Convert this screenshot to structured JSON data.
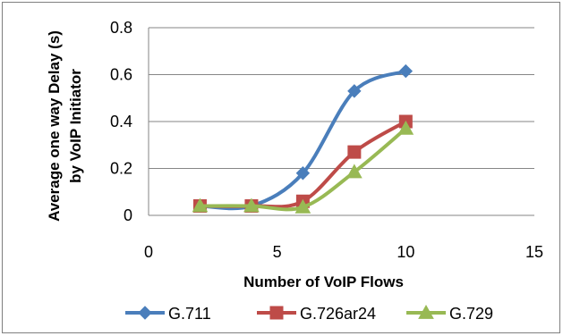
{
  "chart_data": {
    "type": "line",
    "xlabel": "Number of VoIP Flows",
    "ylabel_lines": [
      "Average one way Delay (s)",
      "by VoIP Initiator"
    ],
    "xlim": [
      0,
      15
    ],
    "ylim": [
      0,
      0.8
    ],
    "x_ticks": [
      0,
      5,
      10,
      15
    ],
    "y_ticks": [
      0,
      0.2,
      0.4,
      0.6,
      0.8
    ],
    "x_tick_labels": [
      "0",
      "5",
      "10",
      "15"
    ],
    "y_tick_labels": [
      "0",
      "0.2",
      "0.4",
      "0.6",
      "0.8"
    ],
    "grid": "horizontal",
    "legend_position": "bottom",
    "smooth": true,
    "series": [
      {
        "name": "G.711",
        "color": "#4a7ebb",
        "marker": "diamond",
        "x": [
          2,
          4,
          6,
          8,
          10
        ],
        "y": [
          0.04,
          0.04,
          0.18,
          0.53,
          0.615
        ]
      },
      {
        "name": "G.726ar24",
        "color": "#be4b48",
        "marker": "square",
        "x": [
          2,
          4,
          6,
          8,
          10
        ],
        "y": [
          0.04,
          0.04,
          0.06,
          0.27,
          0.4
        ]
      },
      {
        "name": "G.729",
        "color": "#98b954",
        "marker": "triangle",
        "x": [
          2,
          4,
          6,
          8,
          10
        ],
        "y": [
          0.04,
          0.04,
          0.035,
          0.185,
          0.37
        ]
      }
    ]
  }
}
